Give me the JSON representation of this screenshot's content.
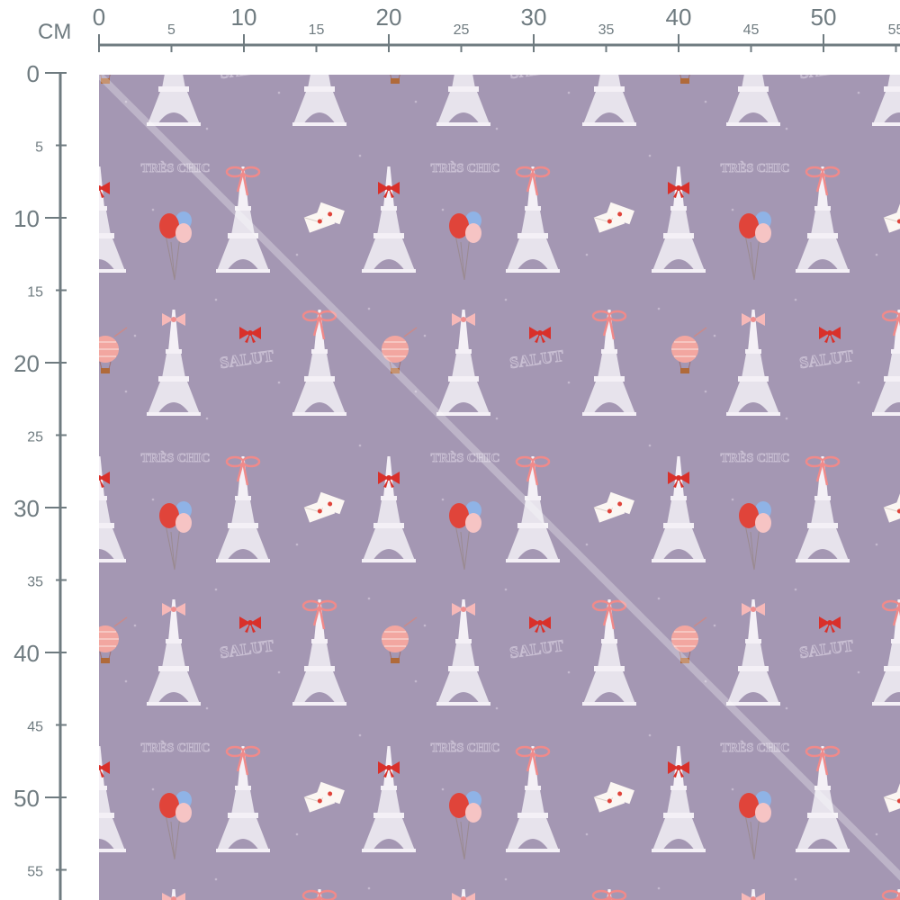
{
  "ruler": {
    "unit": "CM",
    "top_labels": [
      0,
      5,
      10,
      15,
      20,
      25,
      30,
      35,
      40,
      45,
      50,
      55
    ],
    "left_labels": [
      0,
      5,
      10,
      15,
      20,
      25,
      30,
      35,
      40,
      45,
      50,
      55
    ],
    "color": "#6f7b80"
  },
  "fabric": {
    "background_color": "#a497b3",
    "pattern_text": [
      "TRÈS CHIC",
      "SALUT"
    ],
    "motifs": [
      "eiffel-tower",
      "ribbon-bow",
      "red-bow",
      "balloons",
      "love-letter-envelope",
      "hot-air-balloon"
    ]
  }
}
